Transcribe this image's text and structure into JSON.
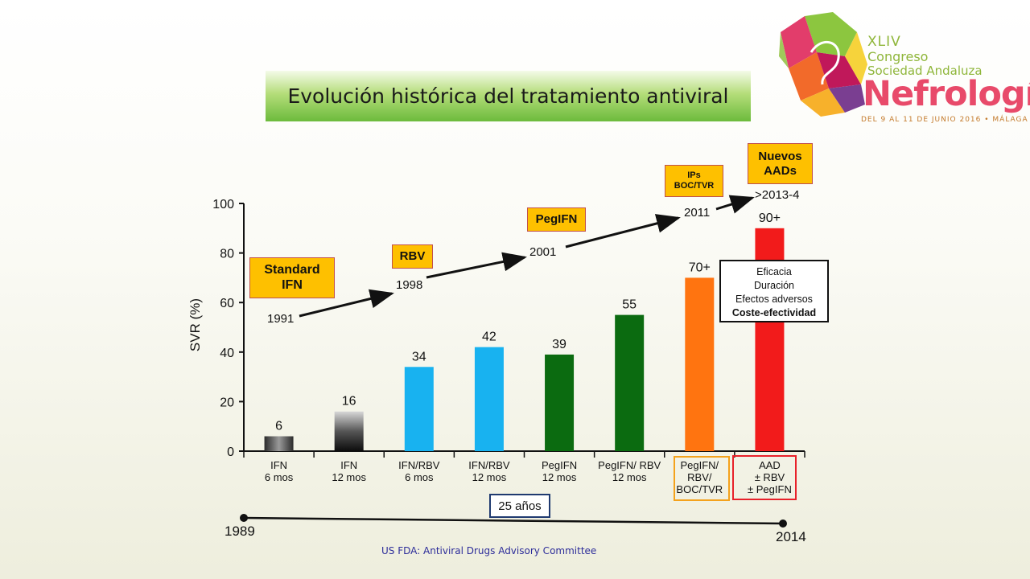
{
  "slide": {
    "title": "Evolución histórica del tratamiento antiviral",
    "source": "US FDA: Antiviral Drugs Advisory Committee"
  },
  "logo": {
    "line1": "XLIV",
    "line2": "Congreso",
    "line3": "Sociedad Andaluza",
    "line4": "Nefrología",
    "line5": "DEL 9 AL 11 DE JUNIO 2016 • MÁLAGA"
  },
  "milestones": {
    "standard": {
      "line1": "Standard",
      "line2": "IFN",
      "year": "1991"
    },
    "rbv": {
      "label": "RBV",
      "year": "1998"
    },
    "pegifn": {
      "label": "PegIFN",
      "year": "2001"
    },
    "ips": {
      "line1": "IPs",
      "line2": "BOC/TVR",
      "year": "2011"
    },
    "new": {
      "line1": "Nuevos",
      "line2": "AADs",
      "year": ">2013-4"
    }
  },
  "info_box": {
    "line1": "Eficacia",
    "line2": "Duración",
    "line3": "Efectos adversos",
    "line4": "Coste-efectividad"
  },
  "timeline": {
    "start": "1989",
    "end": "2014",
    "span": "25 años"
  },
  "colors": {
    "gray": "#4d4d4d",
    "black": "#1a1a1a",
    "blue": "#18b2f0",
    "green": "#0b6b10",
    "orange": "#ff7410",
    "red": "#f21b1b",
    "box": "#fec000"
  },
  "chart_data": {
    "type": "bar",
    "ylabel": "SVR (%)",
    "ylim": [
      0,
      100
    ],
    "yticks": [
      0,
      20,
      40,
      60,
      80,
      100
    ],
    "grid": false,
    "categories": [
      [
        "IFN",
        "6 mos"
      ],
      [
        "IFN",
        "12 mos"
      ],
      [
        "IFN/RBV",
        "6 mos"
      ],
      [
        "IFN/RBV",
        "12 mos"
      ],
      [
        "PegIFN",
        "12 mos"
      ],
      [
        "PegIFN/ RBV",
        "12 mos"
      ],
      [
        "PegIFN/",
        "RBV/",
        "BOC/TVR"
      ],
      [
        "AAD",
        "± RBV",
        "± PegIFN"
      ]
    ],
    "values": [
      6,
      16,
      34,
      42,
      39,
      55,
      70,
      90
    ],
    "data_labels": [
      "6",
      "16",
      "34",
      "42",
      "39",
      "55",
      "70+",
      "90+"
    ],
    "bar_colors": [
      "gray",
      "black",
      "blue",
      "blue",
      "green",
      "green",
      "orange",
      "red"
    ]
  }
}
